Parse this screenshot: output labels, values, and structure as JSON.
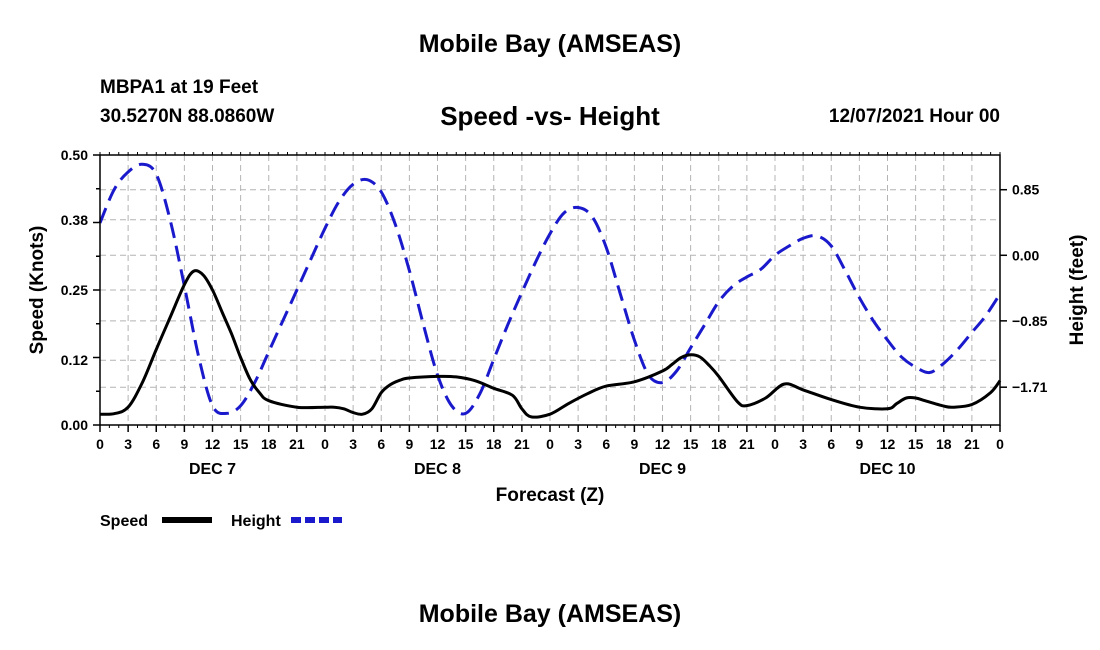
{
  "page": {
    "main_title": "Mobile Bay (AMSEAS)",
    "station": "MBPA1 at 19 Feet",
    "coords": "30.5270N  88.0860W",
    "chart_title": "Speed -vs- Height",
    "datetime": "12/07/2021 Hour 00",
    "bottom_title": "Mobile Bay (AMSEAS)"
  },
  "colors": {
    "speed": "#000000",
    "height": "#1a1acc",
    "grid": "#b4b4b4"
  },
  "chart_data": {
    "type": "line",
    "title": "Speed -vs- Height",
    "xlabel": "Forecast (Z)",
    "ylabel": "Speed (Knots)",
    "y2label": "Height (feet)",
    "x_unit": "hours from 12/07/2021 00Z",
    "xlim": [
      0,
      96
    ],
    "ylim": [
      0,
      0.5
    ],
    "y2lim": [
      -2.2,
      1.3
    ],
    "x_tick_values": [
      0,
      3,
      6,
      9,
      12,
      15,
      18,
      21,
      24,
      27,
      30,
      33,
      36,
      39,
      42,
      45,
      48,
      51,
      54,
      57,
      60,
      63,
      66,
      69,
      72,
      75,
      78,
      81,
      84,
      87,
      90,
      93,
      96
    ],
    "x_tick_labels": [
      "0",
      "3",
      "6",
      "9",
      "12",
      "15",
      "18",
      "21",
      "0",
      "3",
      "6",
      "9",
      "12",
      "15",
      "18",
      "21",
      "0",
      "3",
      "6",
      "9",
      "12",
      "15",
      "18",
      "21",
      "0",
      "3",
      "6",
      "9",
      "12",
      "15",
      "18",
      "21",
      "0"
    ],
    "day_labels": [
      {
        "label": "DEC 7",
        "hour": 12
      },
      {
        "label": "DEC 8",
        "hour": 36
      },
      {
        "label": "DEC 9",
        "hour": 60
      },
      {
        "label": "DEC 10",
        "hour": 84
      }
    ],
    "y_ticks": [
      0.0,
      0.12,
      0.25,
      0.38,
      0.5
    ],
    "y_tick_labels": [
      "0.00",
      "0.12",
      "0.25",
      "0.38",
      "0.50"
    ],
    "y2_ticks": [
      0.85,
      0.0,
      -0.85,
      -1.71
    ],
    "y2_tick_labels": [
      "0.85",
      "0.00",
      "−0.85",
      "−1.71"
    ],
    "grid": true,
    "series": [
      {
        "name": "Speed",
        "axis": "left",
        "style": "solid",
        "x": [
          0,
          1.5,
          3,
          4.5,
          6,
          7.5,
          9,
          10,
          11,
          12,
          13,
          14,
          15,
          16,
          17,
          18,
          21,
          24,
          25,
          26,
          27,
          28,
          29,
          30,
          31,
          32,
          33,
          36,
          38,
          40,
          42,
          44,
          45,
          46,
          48,
          50,
          52,
          54,
          57,
          60,
          61,
          62,
          63,
          64,
          65,
          66,
          68,
          69,
          71,
          73,
          75,
          78,
          81,
          84,
          85,
          86,
          87,
          88,
          90,
          91,
          93,
          95,
          96
        ],
        "values": [
          0.02,
          0.021,
          0.033,
          0.078,
          0.14,
          0.2,
          0.26,
          0.285,
          0.278,
          0.25,
          0.21,
          0.17,
          0.125,
          0.085,
          0.06,
          0.045,
          0.033,
          0.033,
          0.033,
          0.03,
          0.023,
          0.02,
          0.03,
          0.06,
          0.075,
          0.083,
          0.087,
          0.09,
          0.089,
          0.082,
          0.068,
          0.055,
          0.03,
          0.015,
          0.02,
          0.04,
          0.058,
          0.072,
          0.08,
          0.1,
          0.112,
          0.125,
          0.13,
          0.126,
          0.11,
          0.09,
          0.043,
          0.036,
          0.05,
          0.076,
          0.065,
          0.047,
          0.033,
          0.03,
          0.04,
          0.05,
          0.05,
          0.045,
          0.035,
          0.033,
          0.038,
          0.06,
          0.082
        ]
      },
      {
        "name": "Height",
        "axis": "right",
        "style": "dashed",
        "x": [
          0,
          1.5,
          3,
          4.5,
          6,
          7.5,
          9,
          10.5,
          12,
          13.5,
          15,
          16.5,
          18,
          19.5,
          21,
          22.5,
          24,
          25.5,
          27,
          28.5,
          30,
          31.5,
          33,
          34.5,
          36,
          37.5,
          39,
          40.5,
          42,
          43.5,
          45,
          46.5,
          48,
          49.5,
          51,
          52.5,
          54,
          55.5,
          57,
          58.5,
          60,
          61.5,
          63,
          64.5,
          66,
          67.5,
          69,
          70.5,
          72,
          73.5,
          75,
          76.5,
          78,
          79.5,
          81,
          82.5,
          84,
          85.5,
          87,
          88.5,
          90,
          91.5,
          93,
          94.5,
          96
        ],
        "values": [
          0.42,
          0.85,
          1.08,
          1.18,
          1.05,
          0.45,
          -0.4,
          -1.3,
          -1.95,
          -2.05,
          -1.95,
          -1.65,
          -1.25,
          -0.85,
          -0.45,
          -0.05,
          0.35,
          0.7,
          0.92,
          0.98,
          0.82,
          0.4,
          -0.2,
          -0.9,
          -1.55,
          -1.95,
          -2.05,
          -1.8,
          -1.35,
          -0.9,
          -0.48,
          -0.08,
          0.28,
          0.55,
          0.62,
          0.5,
          0.1,
          -0.5,
          -1.1,
          -1.55,
          -1.65,
          -1.5,
          -1.2,
          -0.9,
          -0.6,
          -0.4,
          -0.28,
          -0.18,
          0.0,
          0.12,
          0.22,
          0.25,
          0.12,
          -0.2,
          -0.55,
          -0.85,
          -1.1,
          -1.32,
          -1.45,
          -1.52,
          -1.4,
          -1.22,
          -1.0,
          -0.78,
          -0.5
        ]
      }
    ],
    "legend": [
      {
        "label": "Speed",
        "color": "#000000",
        "style": "solid"
      },
      {
        "label": "Height",
        "color": "#1a1acc",
        "style": "dashed"
      }
    ],
    "legend_position": "bottom-left"
  }
}
